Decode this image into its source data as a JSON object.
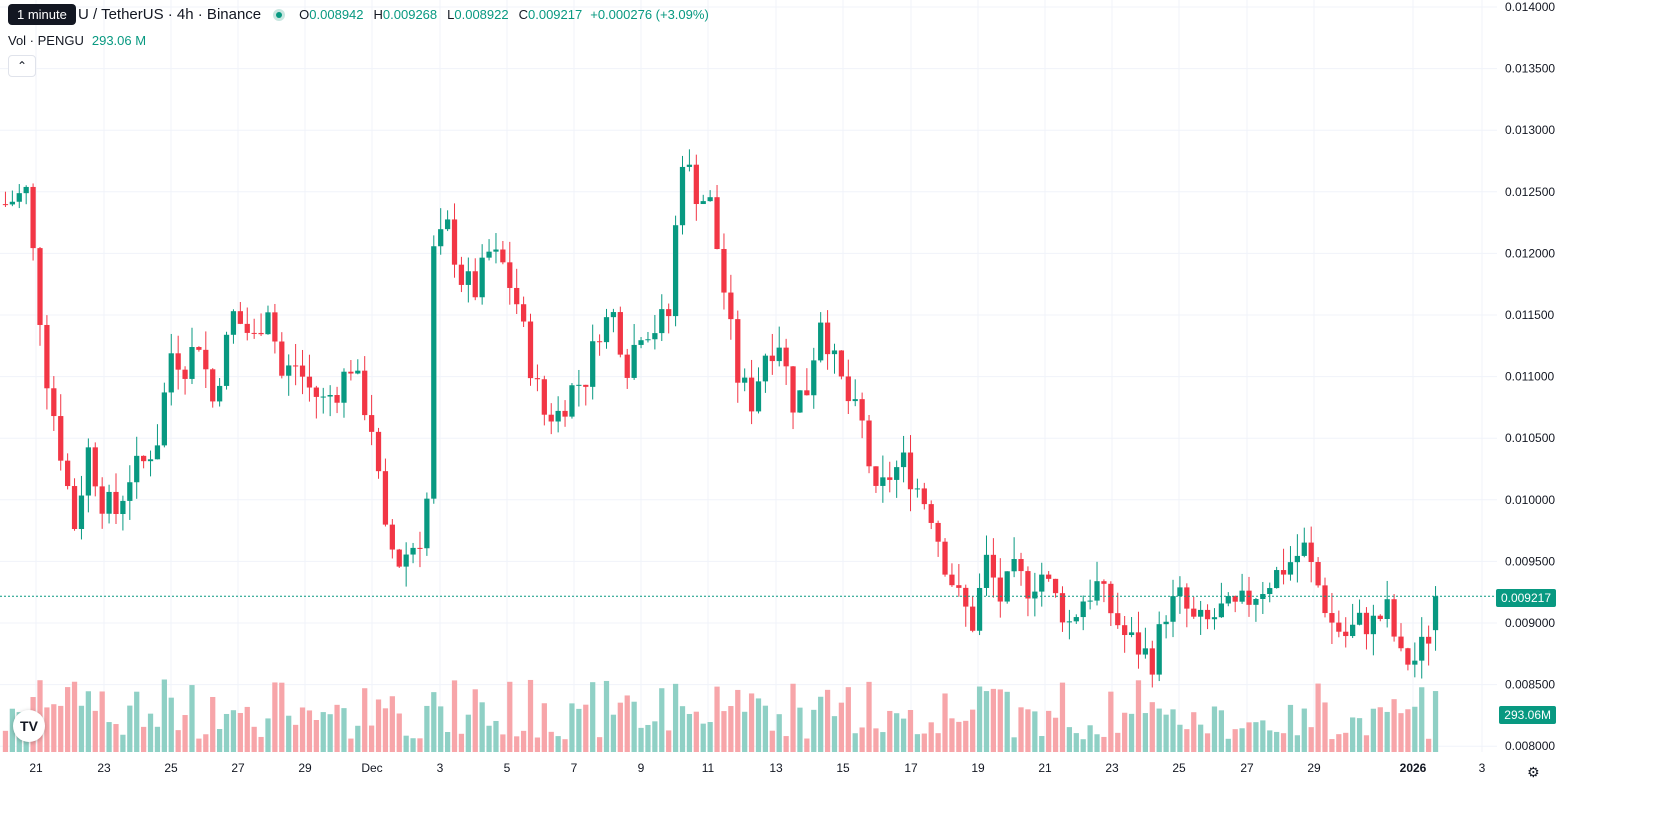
{
  "header": {
    "tooltip": "1 minute",
    "symbol": "U / TetherUS · 4h · Binance",
    "ohlc": {
      "o_label": "O",
      "o": "0.008942",
      "h_label": "H",
      "h": "0.009268",
      "l_label": "L",
      "l": "0.008922",
      "c_label": "C",
      "c": "0.009217",
      "change": "+0.000276 (+3.09%)"
    },
    "volume_label": "Vol · PENGU",
    "volume_value": "293.06 M"
  },
  "price_tag": "0.009217",
  "volume_tag": "293.06M",
  "logo_text": "TV",
  "gear_icon": "gear-icon",
  "colors": {
    "up": "#089981",
    "down": "#f23645",
    "up_vol": "#8fd0c5",
    "down_vol": "#f7a5a9",
    "grid": "#f0f3fa",
    "text": "#131722"
  },
  "chart_data": {
    "type": "candlestick",
    "ylim": [
      0.0079,
      0.014
    ],
    "y_ticks": [
      "0.014000",
      "0.013500",
      "0.013000",
      "0.012500",
      "0.012000",
      "0.011500",
      "0.011000",
      "0.010500",
      "0.010000",
      "0.009500",
      "0.009000",
      "0.008500",
      "0.008000"
    ],
    "x_ticks": [
      "21",
      "23",
      "25",
      "27",
      "29",
      "Dec",
      "3",
      "5",
      "7",
      "9",
      "11",
      "13",
      "15",
      "17",
      "19",
      "21",
      "23",
      "25",
      "27",
      "29",
      "2026",
      "3"
    ],
    "volume_ylim": [
      0,
      600
    ],
    "close_path": [
      [
        0,
        0.0124
      ],
      [
        3,
        0.0125
      ],
      [
        6,
        0.011
      ],
      [
        8,
        0.0104
      ],
      [
        10,
        0.0098
      ],
      [
        12,
        0.0104
      ],
      [
        14,
        0.01
      ],
      [
        16,
        0.0099
      ],
      [
        18,
        0.0102
      ],
      [
        20,
        0.0103
      ],
      [
        22,
        0.0105
      ],
      [
        24,
        0.0112
      ],
      [
        26,
        0.0111
      ],
      [
        28,
        0.0113
      ],
      [
        30,
        0.0108
      ],
      [
        33,
        0.0115
      ],
      [
        36,
        0.0113
      ],
      [
        38,
        0.0116
      ],
      [
        40,
        0.011
      ],
      [
        42,
        0.0111
      ],
      [
        44,
        0.0109
      ],
      [
        46,
        0.0108
      ],
      [
        48,
        0.0109
      ],
      [
        50,
        0.0111
      ],
      [
        53,
        0.0106
      ],
      [
        55,
        0.0097
      ],
      [
        57,
        0.0095
      ],
      [
        60,
        0.0097
      ],
      [
        61,
        0.01
      ],
      [
        62,
        0.012
      ],
      [
        64,
        0.0122
      ],
      [
        66,
        0.0118
      ],
      [
        68,
        0.0117
      ],
      [
        70,
        0.012
      ],
      [
        72,
        0.0119
      ],
      [
        74,
        0.0116
      ],
      [
        76,
        0.0111
      ],
      [
        78,
        0.0107
      ],
      [
        80,
        0.0107
      ],
      [
        82,
        0.0109
      ],
      [
        84,
        0.011
      ],
      [
        86,
        0.0114
      ],
      [
        88,
        0.0115
      ],
      [
        90,
        0.0111
      ],
      [
        92,
        0.0114
      ],
      [
        94,
        0.0114
      ],
      [
        96,
        0.0115
      ],
      [
        97,
        0.0122
      ],
      [
        98,
        0.0128
      ],
      [
        100,
        0.0125
      ],
      [
        102,
        0.0124
      ],
      [
        104,
        0.0117
      ],
      [
        106,
        0.011
      ],
      [
        108,
        0.0108
      ],
      [
        110,
        0.0112
      ],
      [
        112,
        0.0113
      ],
      [
        114,
        0.0108
      ],
      [
        116,
        0.0109
      ],
      [
        118,
        0.0115
      ],
      [
        120,
        0.0111
      ],
      [
        122,
        0.0108
      ],
      [
        124,
        0.0106
      ],
      [
        126,
        0.01
      ],
      [
        128,
        0.0102
      ],
      [
        130,
        0.0103
      ],
      [
        132,
        0.0101
      ],
      [
        134,
        0.0099
      ],
      [
        136,
        0.0095
      ],
      [
        138,
        0.0092
      ],
      [
        140,
        0.009
      ],
      [
        142,
        0.0095
      ],
      [
        144,
        0.0092
      ],
      [
        146,
        0.0094
      ],
      [
        148,
        0.0093
      ],
      [
        150,
        0.0094
      ],
      [
        152,
        0.0092
      ],
      [
        154,
        0.009
      ],
      [
        156,
        0.0092
      ],
      [
        158,
        0.0093
      ],
      [
        160,
        0.0091
      ],
      [
        162,
        0.0089
      ],
      [
        164,
        0.0088
      ],
      [
        166,
        0.0087
      ],
      [
        168,
        0.0091
      ],
      [
        170,
        0.0092
      ],
      [
        172,
        0.009
      ],
      [
        174,
        0.009
      ],
      [
        176,
        0.0091
      ],
      [
        178,
        0.0091
      ],
      [
        180,
        0.0092
      ],
      [
        182,
        0.0093
      ],
      [
        184,
        0.0094
      ],
      [
        186,
        0.0095
      ],
      [
        188,
        0.0096
      ],
      [
        190,
        0.0093
      ],
      [
        192,
        0.009
      ],
      [
        194,
        0.0089
      ],
      [
        196,
        0.009
      ],
      [
        198,
        0.009
      ],
      [
        200,
        0.0091
      ],
      [
        202,
        0.0087
      ],
      [
        204,
        0.0087
      ],
      [
        206,
        0.0089
      ],
      [
        207,
        0.00922
      ]
    ],
    "last_price": 0.009217,
    "last_volume": "293.06M"
  }
}
